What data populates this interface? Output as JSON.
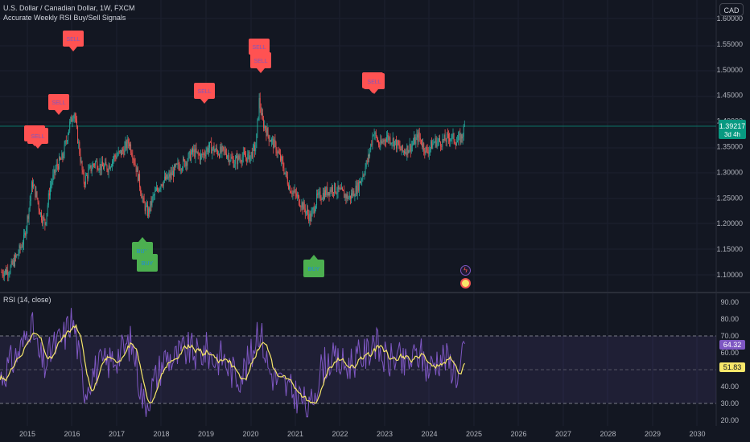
{
  "header": {
    "symbol_line": "U.S. Dollar / Canadian Dollar, 1W, FXCM",
    "indicator_name": "Accurate Weekly RSI Buy/Sell Signals",
    "currency_button": "CAD"
  },
  "price_axis": {
    "labels": [
      "1.60000",
      "1.55000",
      "1.50000",
      "1.45000",
      "1.40000",
      "1.35000",
      "1.30000",
      "1.25000",
      "1.20000",
      "1.15000",
      "1.10000"
    ],
    "last_price": "1.39217",
    "countdown": "3d 4h",
    "colors": {
      "last_price_bg": "#089981"
    }
  },
  "rsi_pane": {
    "title": "RSI (14, close)",
    "labels": [
      "90.00",
      "80.00",
      "70.00",
      "60.00",
      "50.00",
      "40.00",
      "30.00",
      "20.00"
    ],
    "rsi_value": "64.32",
    "ma_value": "51.83",
    "colors": {
      "rsi_line": "#7e57c2",
      "ma_line": "#f7e76a",
      "band": "#7e57c2"
    }
  },
  "time_axis": {
    "labels": [
      "2015",
      "2016",
      "2017",
      "2018",
      "2019",
      "2020",
      "2021",
      "2022",
      "2023",
      "2024",
      "2025",
      "2026",
      "2027",
      "2028",
      "2029",
      "2030"
    ]
  },
  "signals": {
    "sell_label": "SELL",
    "buy_label": "BUY",
    "colors": {
      "sell": "#ff5252",
      "buy": "#4caf50",
      "sell_text": "#7e57c2",
      "buy_text": "#1e88e5"
    }
  },
  "icons": [
    "lightning-icon",
    "earnings-icon"
  ],
  "colors": {
    "bg": "#131722",
    "up": "#26a69a",
    "down": "#ef5350",
    "grid": "#1e222d"
  }
}
